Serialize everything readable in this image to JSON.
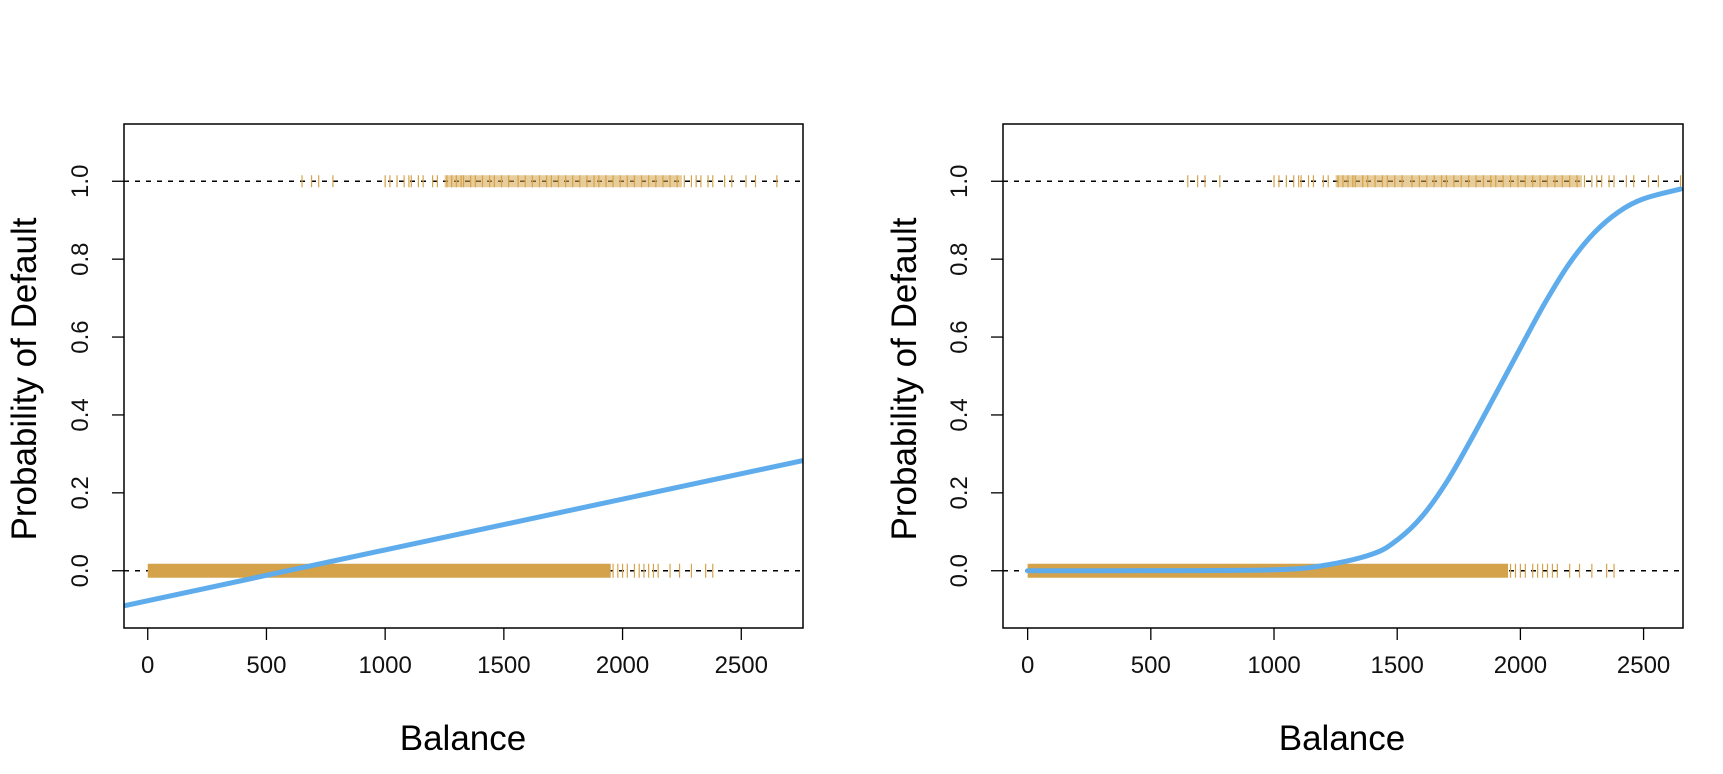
{
  "colors": {
    "curve": "#5eacec",
    "rug": "#d4a24a",
    "frame": "#000000",
    "reference_line": "#000000"
  },
  "chart_data": [
    {
      "type": "line",
      "fit": "linear",
      "title": "",
      "xlabel": "Balance",
      "ylabel": "Probability of Default",
      "xlim": [
        -100,
        2760
      ],
      "ylim": [
        -0.147,
        1.147
      ],
      "xticks": [
        0,
        500,
        1000,
        1500,
        2000,
        2500
      ],
      "xtick_labels": [
        "0",
        "500",
        "1000",
        "1500",
        "2000",
        "2500"
      ],
      "yticks": [
        0.0,
        0.2,
        0.4,
        0.6,
        0.8,
        1.0
      ],
      "ytick_labels": [
        "0.0",
        "0.2",
        "0.4",
        "0.6",
        "0.8",
        "1.0"
      ],
      "reference_lines_y": [
        0,
        1
      ],
      "line": {
        "x": [
          -100,
          2760
        ],
        "y": [
          -0.09,
          0.283
        ]
      },
      "rug_default_yes": {
        "y": 1,
        "dense_range": [
          1250,
          2250
        ],
        "x": [
          650,
          690,
          720,
          780,
          1000,
          1020,
          1050,
          1080,
          1100,
          1110,
          1140,
          1160,
          1200,
          1220,
          1260,
          1280,
          1300,
          1320,
          1330,
          1360,
          1380,
          1410,
          1440,
          1460,
          1490,
          1520,
          1560,
          1590,
          1620,
          1650,
          1680,
          1700,
          1730,
          1760,
          1790,
          1820,
          1850,
          1880,
          1900,
          1930,
          1960,
          1990,
          2020,
          2050,
          2080,
          2110,
          2140,
          2170,
          2200,
          2230,
          2260,
          2290,
          2310,
          2330,
          2360,
          2380,
          2430,
          2460,
          2520,
          2560,
          2650
        ]
      },
      "rug_default_no": {
        "y": 0,
        "dense_range": [
          0,
          1950
        ],
        "x": [
          1960,
          1980,
          2000,
          2020,
          2050,
          2070,
          2090,
          2110,
          2130,
          2150,
          2200,
          2240,
          2290,
          2350,
          2380
        ]
      }
    },
    {
      "type": "line",
      "fit": "logistic",
      "title": "",
      "xlabel": "Balance",
      "ylabel": "Probability of Default",
      "xlim": [
        -100,
        2660
      ],
      "ylim": [
        -0.147,
        1.147
      ],
      "xticks": [
        0,
        500,
        1000,
        1500,
        2000,
        2500
      ],
      "xtick_labels": [
        "0",
        "500",
        "1000",
        "1500",
        "2000",
        "2500"
      ],
      "yticks": [
        0.0,
        0.2,
        0.4,
        0.6,
        0.8,
        1.0
      ],
      "ytick_labels": [
        "0.0",
        "0.2",
        "0.4",
        "0.6",
        "0.8",
        "1.0"
      ],
      "reference_lines_y": [
        0,
        1
      ],
      "line": {
        "x": [
          0,
          500,
          1000,
          1200,
          1400,
          1500,
          1600,
          1700,
          1800,
          1900,
          2000,
          2100,
          2200,
          2300,
          2400,
          2500,
          2650
        ],
        "y": [
          0.0,
          0.0002,
          0.0025,
          0.0134,
          0.043,
          0.079,
          0.139,
          0.227,
          0.337,
          0.454,
          0.572,
          0.688,
          0.79,
          0.868,
          0.922,
          0.955,
          0.98
        ]
      },
      "rug_default_yes": {
        "y": 1,
        "dense_range": [
          1250,
          2250
        ],
        "x": [
          650,
          690,
          720,
          780,
          1000,
          1020,
          1050,
          1080,
          1100,
          1110,
          1140,
          1160,
          1200,
          1220,
          1260,
          1280,
          1300,
          1320,
          1330,
          1360,
          1380,
          1410,
          1440,
          1460,
          1490,
          1520,
          1560,
          1590,
          1620,
          1650,
          1680,
          1700,
          1730,
          1760,
          1790,
          1820,
          1850,
          1880,
          1900,
          1930,
          1960,
          1990,
          2020,
          2050,
          2080,
          2110,
          2140,
          2170,
          2200,
          2230,
          2260,
          2290,
          2310,
          2330,
          2360,
          2380,
          2430,
          2460,
          2520,
          2560,
          2650
        ]
      },
      "rug_default_no": {
        "y": 0,
        "dense_range": [
          0,
          1950
        ],
        "x": [
          1960,
          1980,
          2000,
          2020,
          2050,
          2070,
          2090,
          2110,
          2130,
          2150,
          2200,
          2240,
          2290,
          2350,
          2380
        ]
      }
    }
  ]
}
